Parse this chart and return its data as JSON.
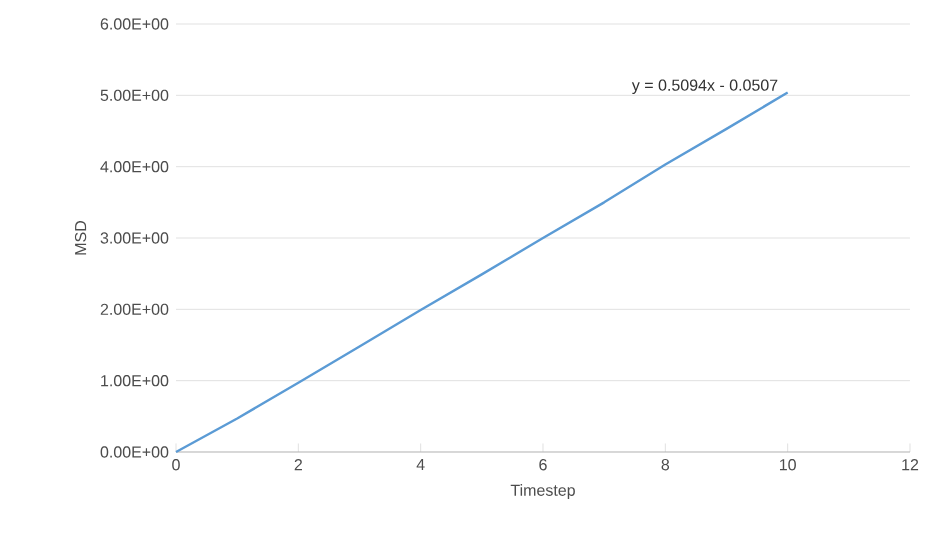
{
  "chart_data": {
    "type": "line",
    "xlabel": "Timestep",
    "ylabel": "MSD",
    "x": [
      0,
      1,
      2,
      3,
      4,
      5,
      6,
      7,
      8,
      9,
      10
    ],
    "series": [
      {
        "color": "#5b9bd5",
        "values": [
          0,
          0.47,
          0.97,
          1.48,
          1.99,
          2.49,
          3.0,
          3.5,
          4.03,
          4.53,
          5.04
        ]
      }
    ],
    "xlim": [
      0,
      12
    ],
    "xticks": [
      0,
      2,
      4,
      6,
      8,
      10,
      12
    ],
    "ylim": [
      0,
      6
    ],
    "yticks": [
      {
        "value": 0,
        "label": "0.00E+00"
      },
      {
        "value": 1,
        "label": "1.00E+00"
      },
      {
        "value": 2,
        "label": "2.00E+00"
      },
      {
        "value": 3,
        "label": "3.00E+00"
      },
      {
        "value": 4,
        "label": "4.00E+00"
      },
      {
        "value": 5,
        "label": "5.00E+00"
      },
      {
        "value": 6,
        "label": "6.00E+00"
      }
    ],
    "grid": "y",
    "marker": "none",
    "line_style": "solid",
    "annotations": [
      "y = 0.5094x - 0.0507"
    ]
  }
}
